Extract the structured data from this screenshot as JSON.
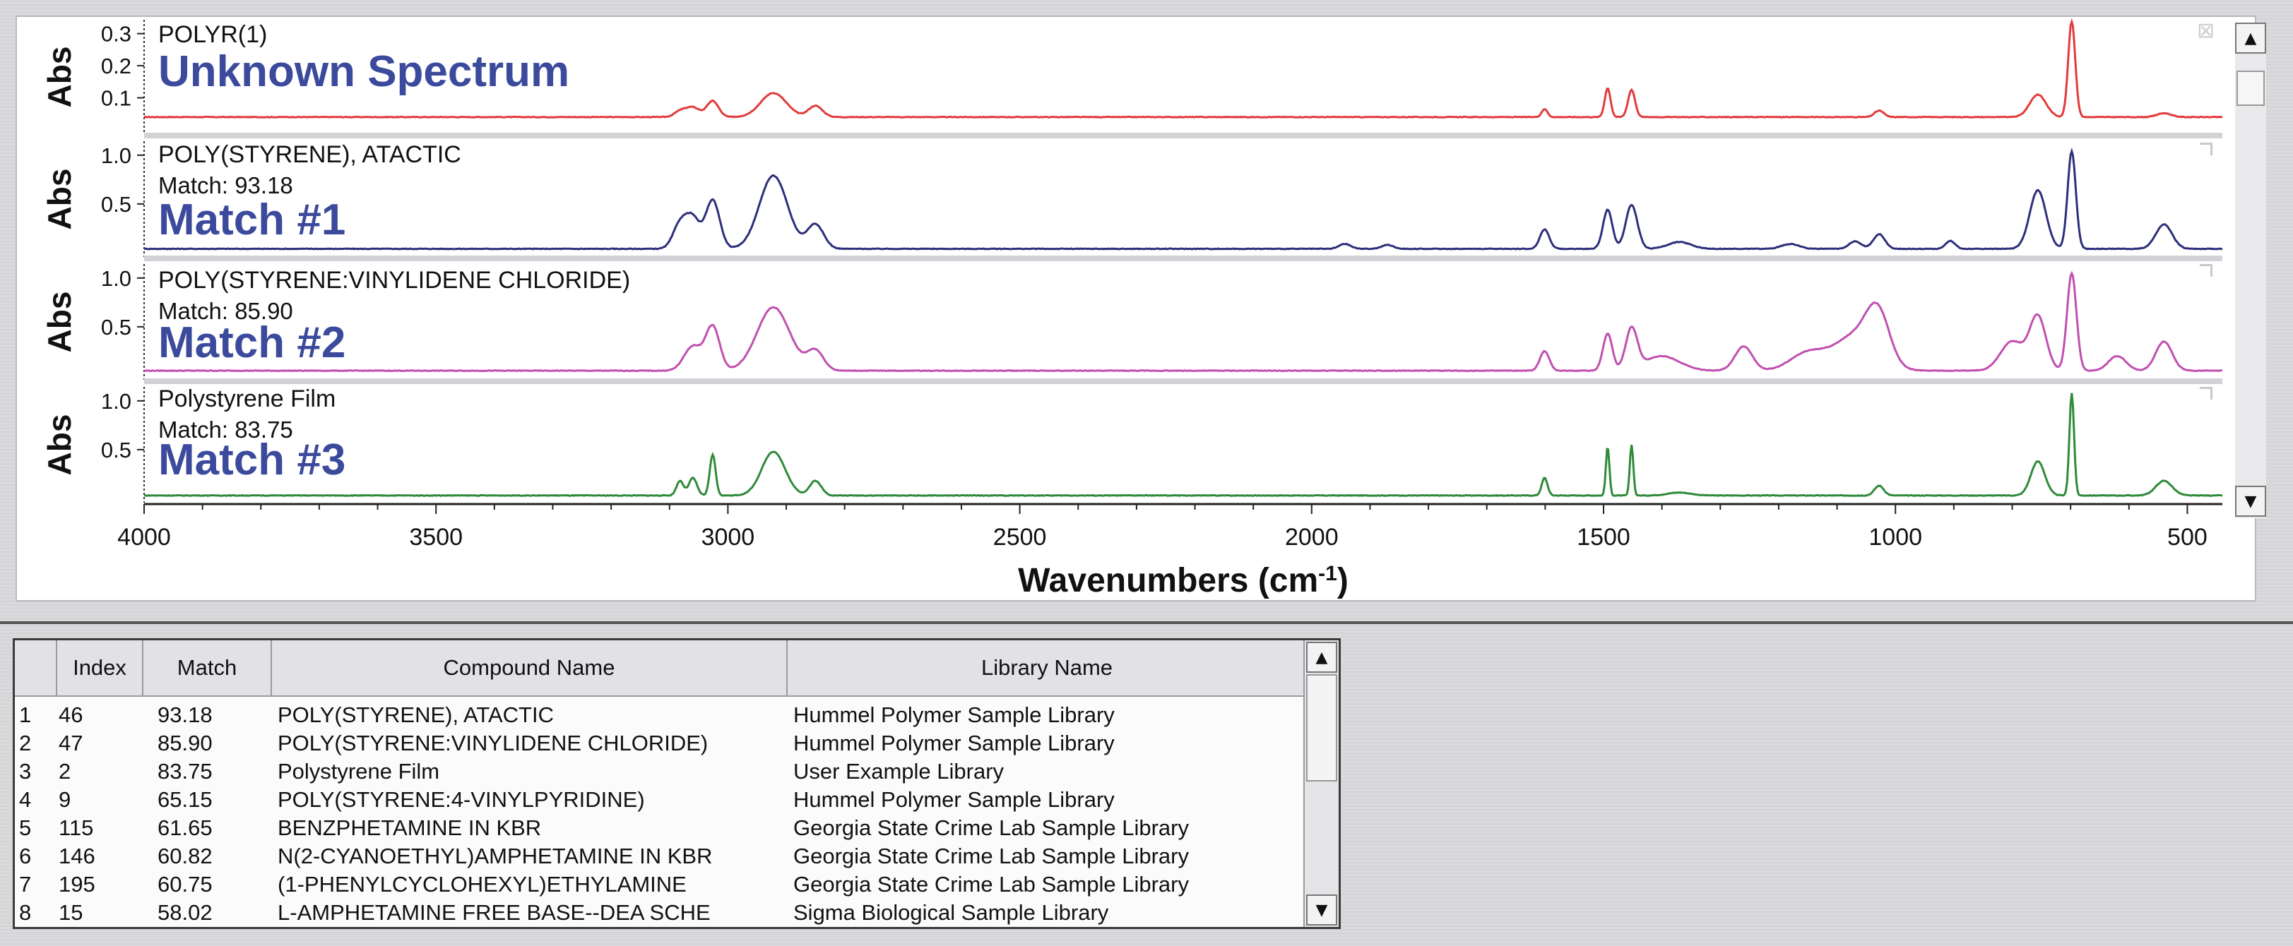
{
  "chart_data": {
    "type": "line",
    "xlabel": "Wavenumbers (cm-1)",
    "xlabel_main": "Wavenumbers (cm",
    "xlabel_sup": "-1",
    "xlabel_tail": ")",
    "xlim": [
      4000,
      440
    ],
    "x_ticks": [
      "4000",
      "3500",
      "3000",
      "2500",
      "2000",
      "1500",
      "1000",
      "500"
    ],
    "x_tick_values": [
      4000,
      3500,
      3000,
      2500,
      2000,
      1500,
      1000,
      500
    ],
    "panels": [
      {
        "ylabel": "Abs",
        "ylim": [
          0,
          0.33
        ],
        "y_ticks": [
          "0.3",
          "0.2",
          "0.1"
        ],
        "y_tick_values": [
          0.3,
          0.2,
          0.1
        ],
        "compound": "POLYR(1)",
        "match_text": "",
        "label": "Unknown Spectrum",
        "color": "#e23b3b",
        "baseline": 0.04,
        "peaks": [
          [
            3082,
            0.017,
            10
          ],
          [
            3060,
            0.03,
            12
          ],
          [
            3026,
            0.05,
            10
          ],
          [
            2922,
            0.075,
            22
          ],
          [
            2850,
            0.035,
            12
          ],
          [
            1601,
            0.025,
            5
          ],
          [
            1493,
            0.09,
            5
          ],
          [
            1452,
            0.085,
            6
          ],
          [
            1028,
            0.02,
            8
          ],
          [
            756,
            0.07,
            14
          ],
          [
            698,
            0.3,
            6
          ],
          [
            540,
            0.012,
            12
          ]
        ]
      },
      {
        "ylabel": "Abs",
        "ylim": [
          0,
          1.1
        ],
        "y_ticks": [
          "1.0",
          "0.5"
        ],
        "y_tick_values": [
          1.0,
          0.5
        ],
        "compound": "POLY(STYRENE), ATACTIC",
        "match_text": "Match: 93.18",
        "label": "Match #1",
        "color": "#2d2f7a",
        "baseline": 0.04,
        "peaks": [
          [
            3082,
            0.25,
            12
          ],
          [
            3060,
            0.3,
            12
          ],
          [
            3026,
            0.5,
            12
          ],
          [
            2922,
            0.75,
            24
          ],
          [
            2850,
            0.25,
            14
          ],
          [
            1943,
            0.05,
            10
          ],
          [
            1870,
            0.04,
            10
          ],
          [
            1601,
            0.2,
            8
          ],
          [
            1493,
            0.4,
            8
          ],
          [
            1452,
            0.45,
            10
          ],
          [
            1370,
            0.07,
            20
          ],
          [
            1180,
            0.05,
            15
          ],
          [
            1069,
            0.08,
            10
          ],
          [
            1028,
            0.15,
            10
          ],
          [
            906,
            0.08,
            8
          ],
          [
            756,
            0.6,
            14
          ],
          [
            698,
            1.0,
            7
          ],
          [
            540,
            0.25,
            14
          ]
        ]
      },
      {
        "ylabel": "Abs",
        "ylim": [
          0,
          1.1
        ],
        "y_ticks": [
          "1.0",
          "0.5"
        ],
        "y_tick_values": [
          1.0,
          0.5
        ],
        "compound": "POLY(STYRENE:VINYLIDENE CHLORIDE)",
        "match_text": "Match: 85.90",
        "label": "Match #2",
        "color": "#c14fb0",
        "baseline": 0.05,
        "peaks": [
          [
            3060,
            0.25,
            15
          ],
          [
            3026,
            0.45,
            12
          ],
          [
            2922,
            0.65,
            28
          ],
          [
            2850,
            0.2,
            14
          ],
          [
            1601,
            0.2,
            8
          ],
          [
            1493,
            0.38,
            8
          ],
          [
            1452,
            0.42,
            10
          ],
          [
            1400,
            0.15,
            30
          ],
          [
            1260,
            0.25,
            15
          ],
          [
            1150,
            0.18,
            30
          ],
          [
            1070,
            0.35,
            35
          ],
          [
            1030,
            0.5,
            20
          ],
          [
            800,
            0.3,
            20
          ],
          [
            756,
            0.55,
            14
          ],
          [
            698,
            1.0,
            8
          ],
          [
            620,
            0.15,
            15
          ],
          [
            540,
            0.3,
            14
          ]
        ]
      },
      {
        "ylabel": "Abs",
        "ylim": [
          0,
          1.1
        ],
        "y_ticks": [
          "1.0",
          "0.5"
        ],
        "y_tick_values": [
          1.0,
          0.5
        ],
        "compound": "Polystyrene Film",
        "match_text": "Match: 83.75",
        "label": "Match #3",
        "color": "#2f8a3a",
        "baseline": 0.03,
        "peaks": [
          [
            3082,
            0.15,
            6
          ],
          [
            3060,
            0.18,
            7
          ],
          [
            3026,
            0.42,
            5
          ],
          [
            2922,
            0.45,
            20
          ],
          [
            2850,
            0.15,
            10
          ],
          [
            1601,
            0.18,
            5
          ],
          [
            1493,
            0.5,
            3
          ],
          [
            1452,
            0.52,
            3
          ],
          [
            1370,
            0.03,
            20
          ],
          [
            1028,
            0.1,
            8
          ],
          [
            756,
            0.35,
            12
          ],
          [
            698,
            1.05,
            4
          ],
          [
            540,
            0.15,
            14
          ]
        ]
      }
    ]
  },
  "table": {
    "headers": [
      "",
      "Index",
      "Match",
      "Compound Name",
      "Library Name"
    ],
    "rows": [
      [
        "1",
        "46",
        "93.18",
        "POLY(STYRENE), ATACTIC",
        "Hummel Polymer Sample Library"
      ],
      [
        "2",
        "47",
        "85.90",
        "POLY(STYRENE:VINYLIDENE CHLORIDE)",
        "Hummel Polymer Sample Library"
      ],
      [
        "3",
        "2",
        "83.75",
        "Polystyrene Film",
        "User Example Library"
      ],
      [
        "4",
        "9",
        "65.15",
        "POLY(STYRENE:4-VINYLPYRIDINE)",
        "Hummel Polymer Sample Library"
      ],
      [
        "5",
        "115",
        "61.65",
        "BENZPHETAMINE IN KBR",
        "Georgia State Crime Lab Sample Library"
      ],
      [
        "6",
        "146",
        "60.82",
        "N(2-CYANOETHYL)AMPHETAMINE IN KBR",
        "Georgia State Crime Lab Sample Library"
      ],
      [
        "7",
        "195",
        "60.75",
        "(1-PHENYLCYCLOHEXYL)ETHYLAMINE",
        "Georgia State Crime Lab Sample Library"
      ],
      [
        "8",
        "15",
        "58.02",
        "L-AMPHETAMINE FREE BASE--DEA SCHE",
        "Sigma Biological Sample Library"
      ]
    ]
  },
  "icons": {
    "scroll_up": "▲",
    "scroll_down": "▼",
    "close": "⊠"
  }
}
